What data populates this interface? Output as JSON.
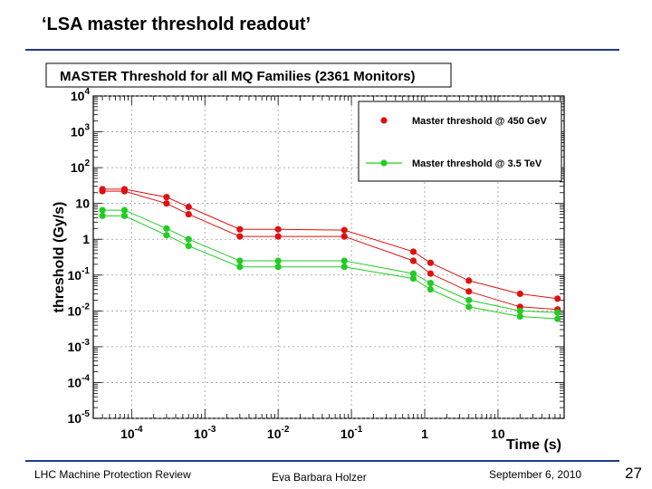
{
  "slide": {
    "title": "‘LSA master threshold readout’",
    "footer_left": "LHC Machine Protection Review",
    "footer_center": "Eva Barbara Holzer",
    "footer_right": "September 6, 2010",
    "page_number": "27"
  },
  "chart_data": {
    "type": "line",
    "title": "MASTER Threshold for all MQ Families (2361 Monitors)",
    "xlabel": "Time (s)",
    "ylabel": "threshold (Gy/s)",
    "xscale": "log",
    "yscale": "log",
    "xlim": [
      3e-05,
      80
    ],
    "ylim": [
      1e-05,
      10000
    ],
    "grid": true,
    "legend_position": "top-right",
    "x_tick_values": [
      0.0001,
      0.001,
      0.01,
      0.1,
      1,
      10
    ],
    "y_tick_values": [
      1e-05,
      0.0001,
      0.001,
      0.01,
      0.1,
      1,
      10,
      100,
      1000,
      10000
    ],
    "x_tick_labels": [
      {
        "base": "10",
        "exp": "-4"
      },
      {
        "base": "10",
        "exp": "-3"
      },
      {
        "base": "10",
        "exp": "-2"
      },
      {
        "base": "10",
        "exp": "-1"
      },
      {
        "base": "1",
        "exp": ""
      },
      {
        "base": "10",
        "exp": ""
      }
    ],
    "y_tick_labels": [
      {
        "base": "10",
        "exp": "-5"
      },
      {
        "base": "10",
        "exp": "-4"
      },
      {
        "base": "10",
        "exp": "-3"
      },
      {
        "base": "10",
        "exp": "-2"
      },
      {
        "base": "10",
        "exp": "-1"
      },
      {
        "base": "1",
        "exp": ""
      },
      {
        "base": "10",
        "exp": ""
      },
      {
        "base": "10",
        "exp": "2"
      },
      {
        "base": "10",
        "exp": "3"
      },
      {
        "base": "10",
        "exp": "4"
      }
    ],
    "series": [
      {
        "name": "Master threshold @ 450 GeV",
        "color": "#e01010",
        "x": [
          4e-05,
          8e-05,
          0.0003,
          0.0006,
          0.003,
          0.01,
          0.08,
          0.7,
          1.2,
          4,
          20,
          65
        ],
        "upper": [
          25,
          25,
          15,
          8,
          1.9,
          1.9,
          1.8,
          0.45,
          0.22,
          0.07,
          0.03,
          0.022
        ],
        "lower": [
          22,
          22,
          10,
          5,
          1.2,
          1.2,
          1.2,
          0.25,
          0.11,
          0.035,
          0.013,
          0.011
        ]
      },
      {
        "name": "Master threshold @ 3.5 TeV",
        "color": "#22cc22",
        "x": [
          4e-05,
          8e-05,
          0.0003,
          0.0006,
          0.003,
          0.01,
          0.08,
          0.7,
          1.2,
          4,
          20,
          65
        ],
        "upper": [
          6.5,
          6.5,
          2,
          1,
          0.25,
          0.25,
          0.25,
          0.11,
          0.06,
          0.02,
          0.01,
          0.009
        ],
        "lower": [
          4.5,
          4.5,
          1.3,
          0.65,
          0.17,
          0.17,
          0.17,
          0.08,
          0.04,
          0.013,
          0.007,
          0.006
        ]
      }
    ]
  }
}
